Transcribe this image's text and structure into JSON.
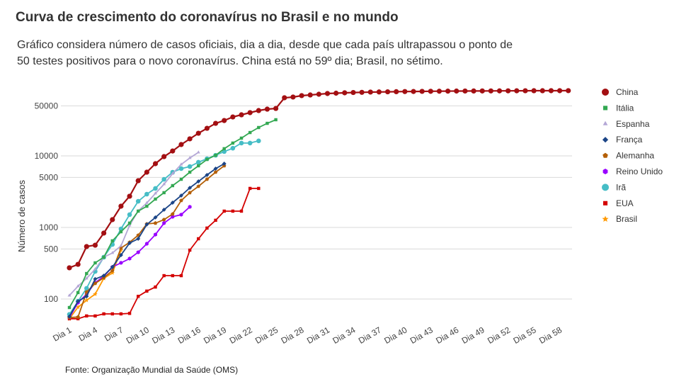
{
  "title": "Curva de crescimento do coronavírus no Brasil e no mundo",
  "subtitle": "Gráfico considera número de casos oficiais, dia a dia, desde que cada país ultrapassou o ponto de 50 testes positivos para o novo coronavírus. China está no 59º dia; Brasil, no sétimo.",
  "source": "Fonte: Organização Mundial da Saúde (OMS)",
  "chart_data": {
    "type": "line",
    "title": "Curva de crescimento do coronavírus no Brasil e no mundo",
    "ylabel": "Número de casos",
    "xlabel": "",
    "yscale": "log",
    "ylim": [
      45,
      100000
    ],
    "xlim": [
      1,
      59
    ],
    "yticks": [
      100,
      500,
      1000,
      5000,
      10000,
      50000
    ],
    "xtick_labels": [
      "Dia 1",
      "Dia 4",
      "Dia 7",
      "Dia 10",
      "Dia 13",
      "Dia 16",
      "Dia 19",
      "Dia 22",
      "Dia 25",
      "Dia 28",
      "Dia 31",
      "Dia 34",
      "Dia 37",
      "Dia 40",
      "Dia 43",
      "Dia 46",
      "Dia 49",
      "Dia 52",
      "Dia 55",
      "Dia 58"
    ],
    "xtick_days": [
      1,
      4,
      7,
      10,
      13,
      16,
      19,
      22,
      25,
      28,
      31,
      34,
      37,
      40,
      43,
      46,
      49,
      52,
      55,
      58
    ],
    "grid": true,
    "legend_position": "right",
    "series": [
      {
        "name": "China",
        "color": "#a30f12",
        "marker": "circle",
        "values": [
          273,
          305,
          541,
          565,
          834,
          1285,
          1983,
          2730,
          4500,
          5920,
          7780,
          9770,
          11700,
          14400,
          17300,
          20700,
          24300,
          28500,
          31200,
          35000,
          37500,
          40200,
          43000,
          45000,
          46000,
          64900,
          66400,
          69500,
          71000,
          72700,
          74400,
          75200,
          76100,
          76800,
          77300,
          77900,
          78200,
          78600,
          78900,
          79200,
          79400,
          79700,
          79900,
          80100,
          80300,
          80500,
          80600,
          80700,
          80800,
          80900,
          81000,
          81100,
          81200,
          81300,
          81400,
          81400,
          81500,
          81500,
          81600
        ]
      },
      {
        "name": "Itália",
        "color": "#33a852",
        "marker": "square",
        "values": [
          76,
          123,
          227,
          320,
          384,
          650,
          871,
          1150,
          1690,
          1980,
          2490,
          3060,
          3840,
          4710,
          5920,
          7270,
          8920,
          10200,
          12600,
          15100,
          17700,
          21200,
          24900,
          28500,
          32000
        ]
      },
      {
        "name": "Espanha",
        "color": "#b4a7d6",
        "marker": "triangle",
        "values": [
          112,
          151,
          194,
          261,
          384,
          440,
          553,
          1070,
          1700,
          2200,
          2990,
          4020,
          5650,
          7600,
          9340,
          11200
        ]
      },
      {
        "name": "França",
        "color": "#1c4587",
        "marker": "diamond",
        "values": [
          57,
          93,
          109,
          190,
          212,
          280,
          411,
          606,
          695,
          1100,
          1380,
          1770,
          2220,
          2790,
          3580,
          4400,
          5410,
          6640,
          7780
        ]
      },
      {
        "name": "Alemanha",
        "color": "#b45f06",
        "marker": "pentagon",
        "values": [
          55,
          56,
          125,
          165,
          198,
          249,
          516,
          620,
          778,
          1120,
          1150,
          1285,
          1540,
          2380,
          3060,
          3750,
          4710,
          5920,
          7270
        ]
      },
      {
        "name": "Reino Unido",
        "color": "#9900ff",
        "marker": "hexagon",
        "values": [
          55,
          89,
          117,
          169,
          208,
          280,
          320,
          367,
          450,
          592,
          795,
          1150,
          1410,
          1510,
          1940
        ]
      },
      {
        "name": "Irã",
        "color": "#46bdc6",
        "marker": "circle",
        "values": [
          61,
          93,
          141,
          243,
          384,
          578,
          955,
          1510,
          2320,
          2920,
          3510,
          4710,
          5920,
          6640,
          7100,
          8150,
          9130,
          10200,
          11500,
          12800,
          15100,
          15100,
          16200
        ]
      },
      {
        "name": "EUA",
        "color": "#d40000",
        "marker": "square",
        "values": [
          53,
          53,
          58,
          58,
          62,
          62,
          62,
          63,
          109,
          129,
          147,
          212,
          212,
          212,
          482,
          695,
          980,
          1260,
          1690,
          1690,
          1690,
          3510,
          3510
        ]
      },
      {
        "name": "Brasil",
        "color": "#ff9900",
        "marker": "star",
        "values": [
          53,
          77,
          96,
          117,
          194,
          232,
          482
        ]
      }
    ]
  }
}
